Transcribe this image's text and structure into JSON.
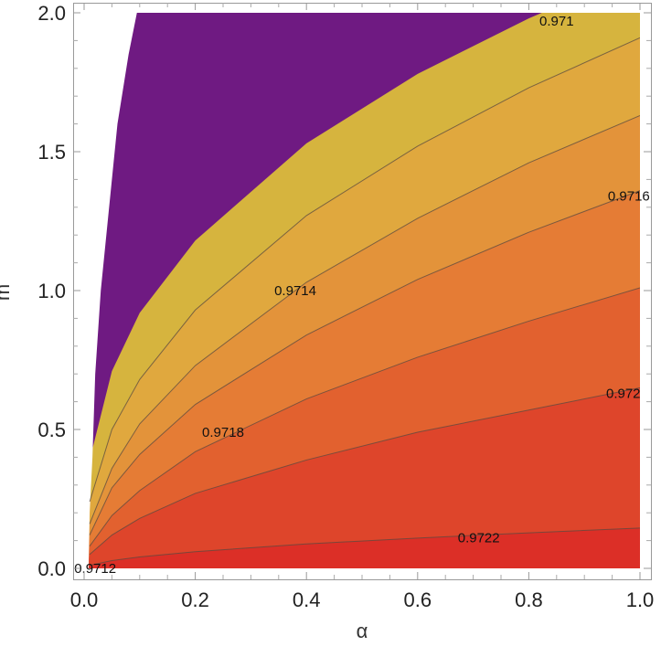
{
  "chart_data": {
    "type": "contour",
    "title": "",
    "xlabel": "α",
    "ylabel": "m",
    "xlim": [
      0,
      1.0
    ],
    "ylim": [
      0,
      2.0
    ],
    "xticks": [
      {
        "v": 0,
        "label": "0.0"
      },
      {
        "v": 0.2,
        "label": "0.2"
      },
      {
        "v": 0.4,
        "label": "0.4"
      },
      {
        "v": 0.6,
        "label": "0.6"
      },
      {
        "v": 0.8,
        "label": "0.8"
      },
      {
        "v": 1.0,
        "label": "1.0"
      }
    ],
    "yticks": [
      {
        "v": 0,
        "label": "0.0"
      },
      {
        "v": 0.5,
        "label": "0.5"
      },
      {
        "v": 1.0,
        "label": "1.0"
      },
      {
        "v": 1.5,
        "label": "1.5"
      },
      {
        "v": 2.0,
        "label": "2.0"
      }
    ],
    "grid": false,
    "alpha_samples": [
      0.01,
      0.05,
      0.1,
      0.2,
      0.4,
      0.6,
      0.8,
      1.0
    ],
    "domain_left_edge": [
      [
        0.008,
        0.0
      ],
      [
        0.01,
        0.2
      ],
      [
        0.015,
        0.4
      ],
      [
        0.02,
        0.7
      ],
      [
        0.03,
        1.0
      ],
      [
        0.045,
        1.3
      ],
      [
        0.06,
        1.6
      ],
      [
        0.08,
        1.85
      ],
      [
        0.095,
        2.0
      ]
    ],
    "contours": [
      {
        "level": "0.9722",
        "m": [
          0.011,
          0.028,
          0.041,
          0.06,
          0.088,
          0.109,
          0.128,
          0.145
        ],
        "band_color_above": "#de452b"
      },
      {
        "level": "0.972",
        "m": [
          0.05,
          0.12,
          0.18,
          0.27,
          0.39,
          0.49,
          0.57,
          0.65
        ],
        "band_color_above": "#e2612f"
      },
      {
        "level": "0.9718",
        "m": [
          0.08,
          0.19,
          0.28,
          0.42,
          0.61,
          0.76,
          0.89,
          1.01
        ],
        "band_color_above": "#e57c35"
      },
      {
        "level": "0.9716",
        "m": [
          0.12,
          0.29,
          0.41,
          0.59,
          0.84,
          1.04,
          1.21,
          1.36
        ],
        "band_color_above": "#e3933a"
      },
      {
        "level": "0.9714",
        "m": [
          0.16,
          0.36,
          0.52,
          0.73,
          1.03,
          1.26,
          1.46,
          1.63
        ],
        "band_color_above": "#e0a83e"
      },
      {
        "level": "0.9712",
        "m": [
          0.24,
          0.5,
          0.68,
          0.93,
          1.27,
          1.52,
          1.73,
          1.91
        ],
        "band_color_above": "#d6b43e"
      },
      {
        "level": "0.971",
        "m": [
          0.39,
          0.71,
          0.92,
          1.18,
          1.53,
          1.78,
          1.98,
          2.15
        ],
        "band_color_above": "#6f1a82",
        "boundary": true
      }
    ],
    "lowest_band_color": "#dc2f27",
    "contour_labels": [
      {
        "text": "0.971",
        "alpha": 0.85,
        "m": 1.97
      },
      {
        "text": "0.9712",
        "alpha": 0.02,
        "m": 0.0
      },
      {
        "text": "0.9714",
        "alpha": 0.38,
        "m": 1.0
      },
      {
        "text": "0.9716",
        "alpha": 0.98,
        "m": 1.34
      },
      {
        "text": "0.9718",
        "alpha": 0.25,
        "m": 0.49
      },
      {
        "text": "0.972",
        "alpha": 0.97,
        "m": 0.63
      },
      {
        "text": "0.9722",
        "alpha": 0.71,
        "m": 0.11
      }
    ]
  }
}
